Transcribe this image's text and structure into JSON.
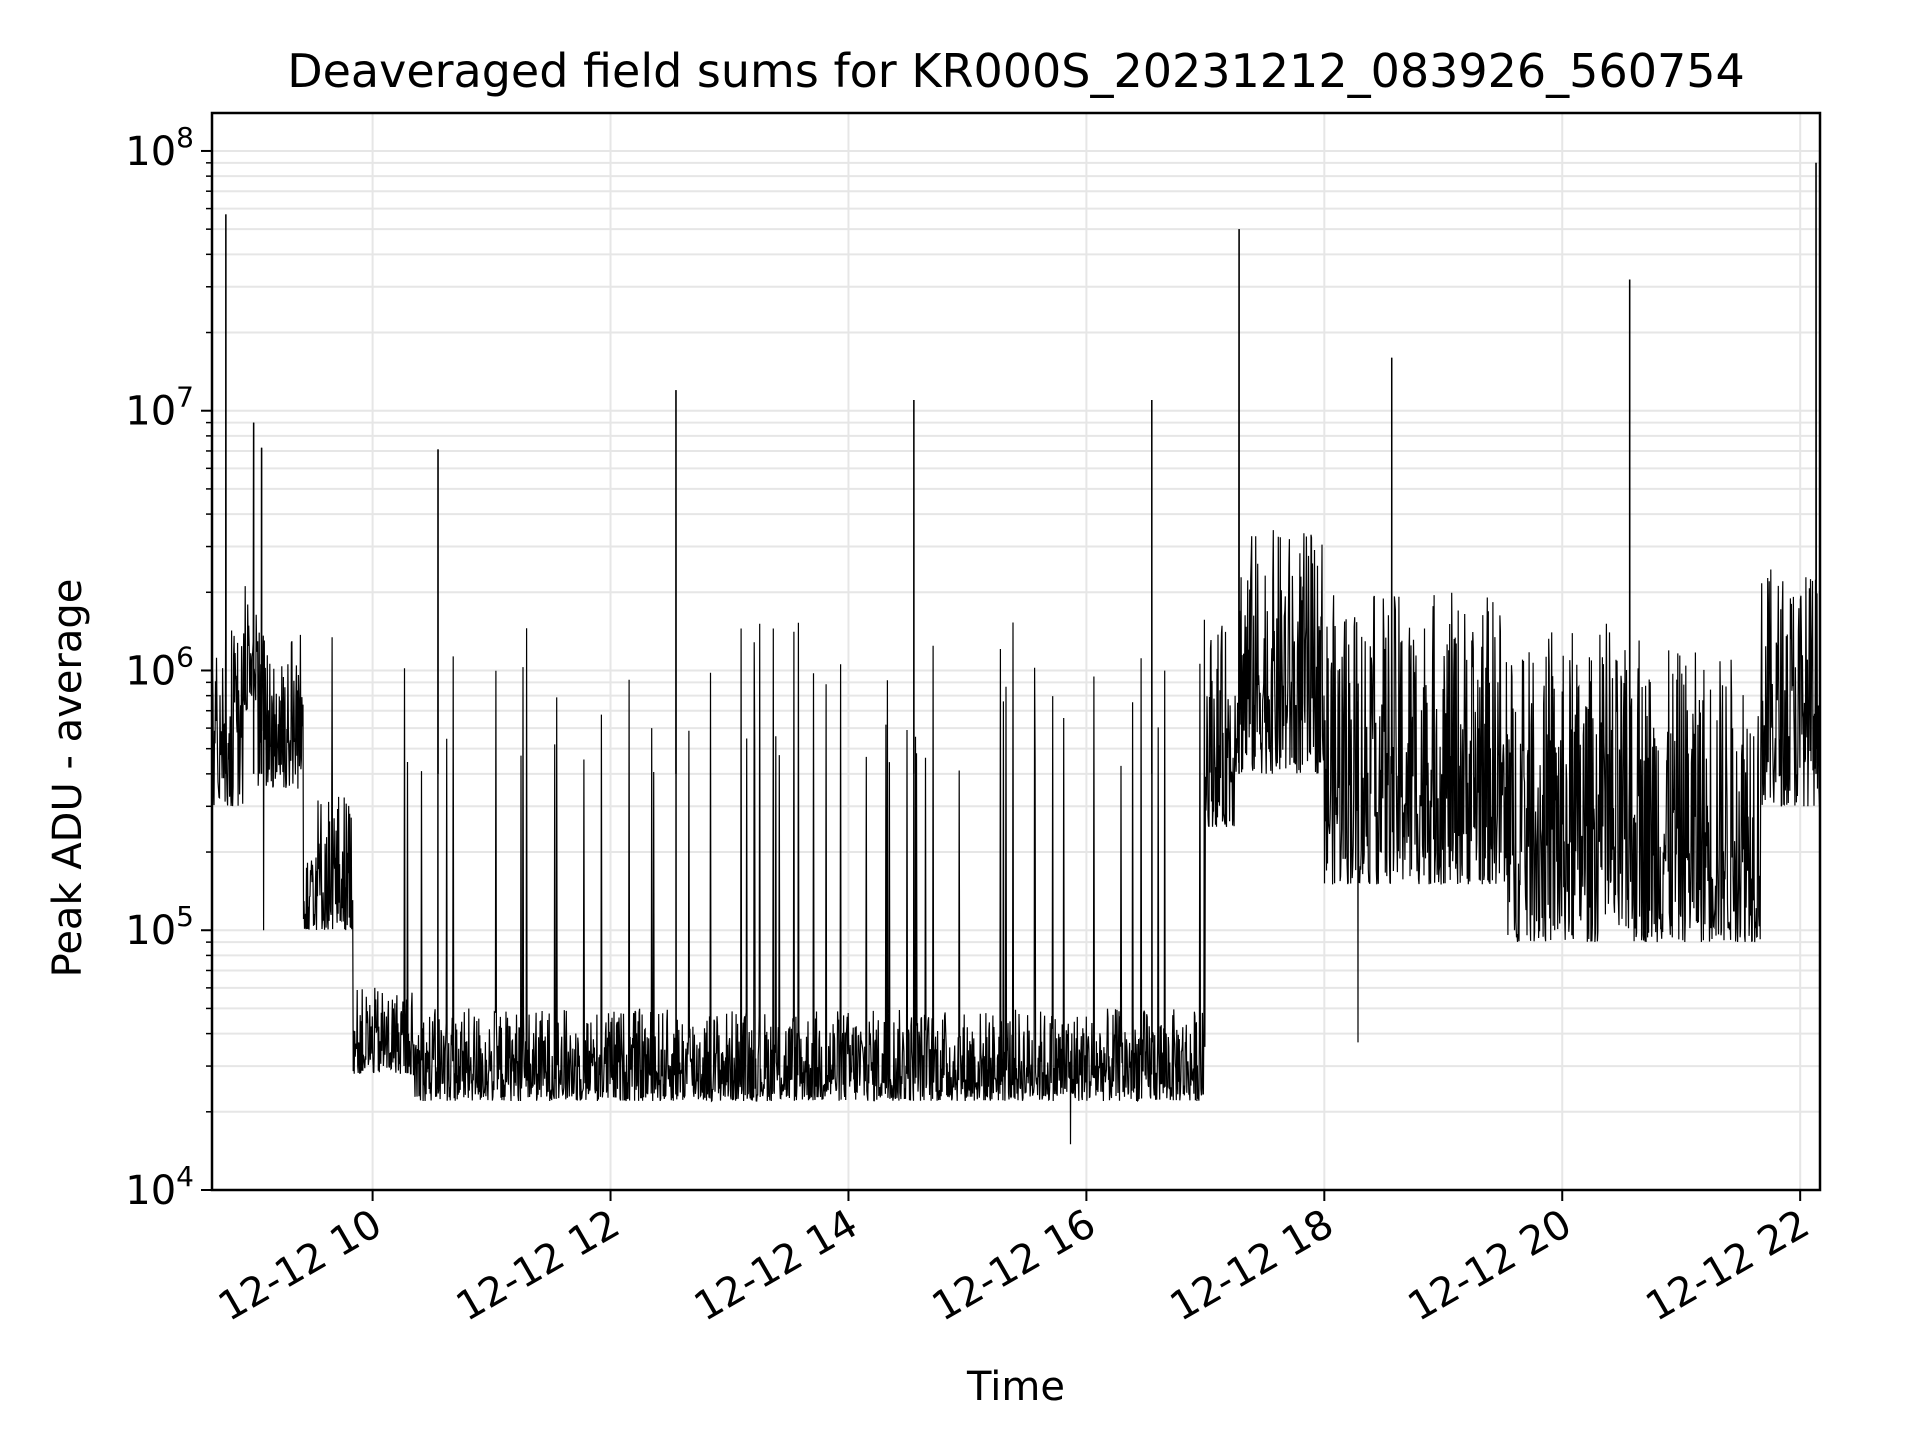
{
  "chart_data": {
    "type": "line",
    "title": "Deaveraged field sums for KR000S_20231212_083926_560754",
    "xlabel": "Time",
    "ylabel": "Peak ADU - average",
    "x_ticks": [
      "12-12 10",
      "12-12 12",
      "12-12 14",
      "12-12 16",
      "12-12 18",
      "12-12 20",
      "12-12 22"
    ],
    "y_ticks": [
      {
        "exponent": "4",
        "value": 10000
      },
      {
        "exponent": "5",
        "value": 100000
      },
      {
        "exponent": "6",
        "value": 1000000
      },
      {
        "exponent": "7",
        "value": 10000000
      },
      {
        "exponent": "8",
        "value": 100000000
      }
    ],
    "xlim": [
      "2023-12-12 08:39",
      "2023-12-12 22:10"
    ],
    "ylim": [
      10000,
      140000000
    ],
    "y_scale": "log",
    "grid": true,
    "line_color": "#000000",
    "grid_color": "#e6e6e6",
    "segments": [
      {
        "start": "2023-12-12 08:39",
        "end": "2023-12-12 08:55",
        "low": 300000,
        "high": 1500000
      },
      {
        "start": "2023-12-12 08:55",
        "end": "2023-12-12 09:02",
        "low": 700000,
        "high": 2300000
      },
      {
        "start": "2023-12-12 09:02",
        "end": "2023-12-12 09:25",
        "low": 350000,
        "high": 1500000
      },
      {
        "start": "2023-12-12 09:25",
        "end": "2023-12-12 09:50",
        "low": 100000,
        "high": 350000
      },
      {
        "start": "2023-12-12 09:50",
        "end": "2023-12-12 10:20",
        "low": 28000,
        "high": 60000
      },
      {
        "start": "2023-12-12 10:20",
        "end": "2023-12-12 17:00",
        "low": 22000,
        "high": 50000
      },
      {
        "start": "2023-12-12 17:00",
        "end": "2023-12-12 17:15",
        "low": 250000,
        "high": 1500000
      },
      {
        "start": "2023-12-12 17:15",
        "end": "2023-12-12 18:00",
        "low": 400000,
        "high": 3500000
      },
      {
        "start": "2023-12-12 18:00",
        "end": "2023-12-12 19:30",
        "low": 150000,
        "high": 2000000
      },
      {
        "start": "2023-12-12 19:30",
        "end": "2023-12-12 21:40",
        "low": 90000,
        "high": 1200000
      },
      {
        "start": "2023-12-12 21:40",
        "end": "2023-12-12 22:10",
        "low": 300000,
        "high": 2500000
      }
    ],
    "spikes": [
      {
        "t": "2023-12-12 08:46",
        "value": 57000000
      },
      {
        "t": "2023-12-12 09:00",
        "value": 9000000
      },
      {
        "t": "2023-12-12 09:04",
        "value": 7200000
      },
      {
        "t": "2023-12-12 10:33",
        "value": 7100000
      },
      {
        "t": "2023-12-12 12:33",
        "value": 12000000
      },
      {
        "t": "2023-12-12 14:33",
        "value": 11000000
      },
      {
        "t": "2023-12-12 16:33",
        "value": 11000000
      },
      {
        "t": "2023-12-12 17:17",
        "value": 50000000
      },
      {
        "t": "2023-12-12 18:34",
        "value": 16000000
      },
      {
        "t": "2023-12-12 20:34",
        "value": 32000000
      },
      {
        "t": "2023-12-12 22:08",
        "value": 90000000
      }
    ],
    "dips": [
      {
        "t": "2023-12-12 09:05",
        "value": 100000
      },
      {
        "t": "2023-12-12 15:52",
        "value": 15000
      },
      {
        "t": "2023-12-12 18:17",
        "value": 37000
      }
    ]
  }
}
